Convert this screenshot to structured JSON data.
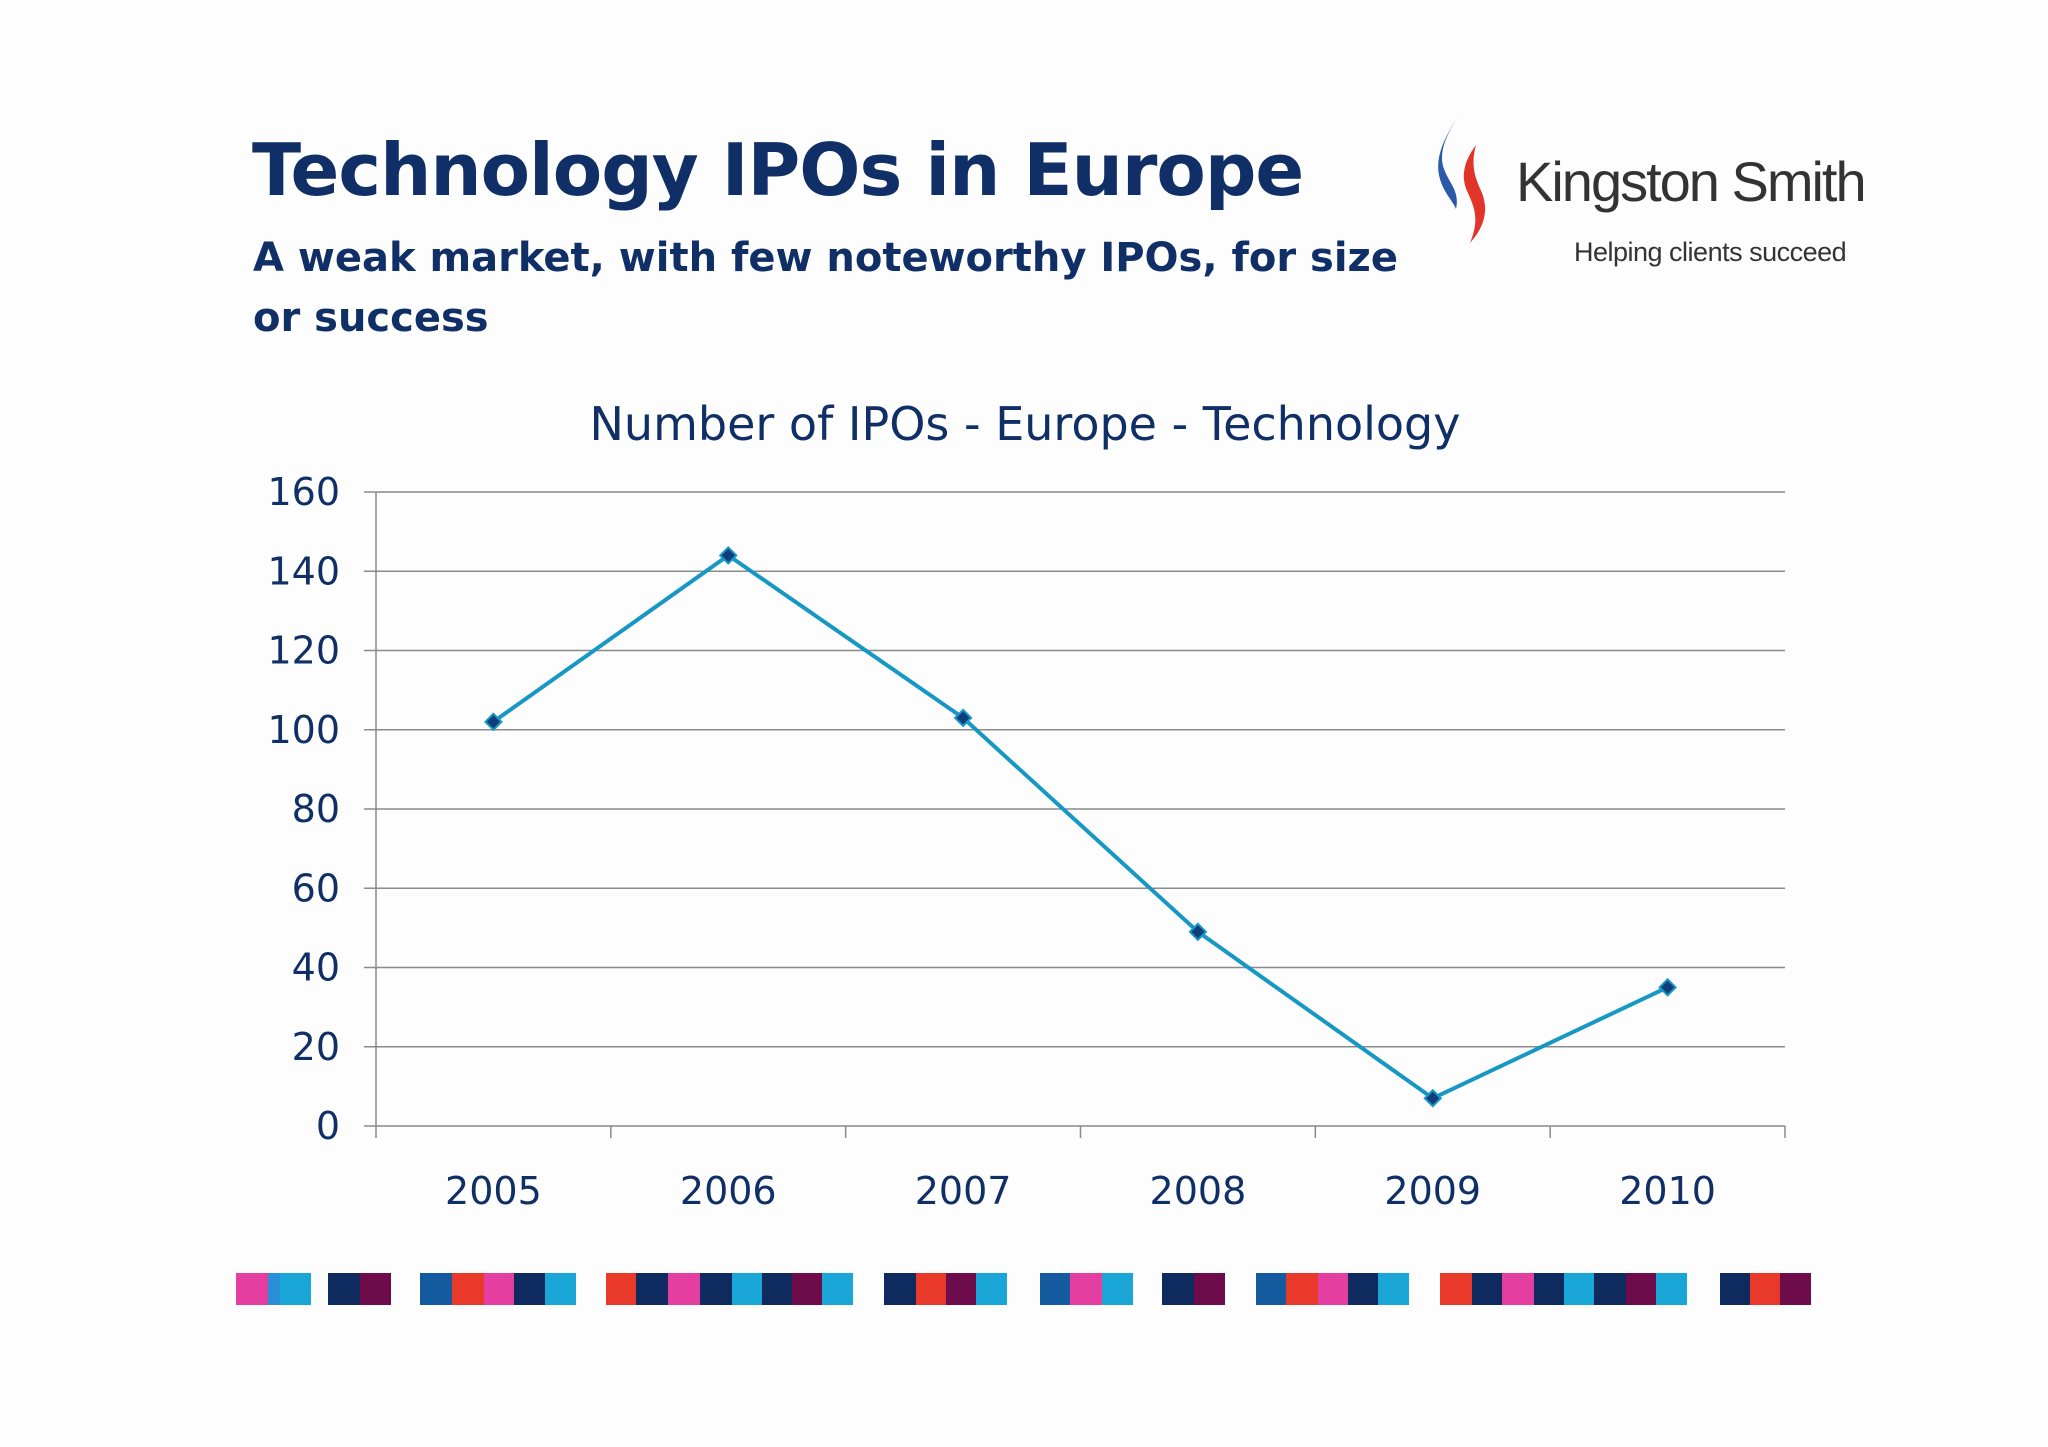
{
  "slide": {
    "title": "Technology IPOs in Europe",
    "subtitle": "A weak market, with few noteworthy IPOs, for size or success"
  },
  "logo": {
    "name": "Kingston Smith",
    "tagline": "Helping clients succeed",
    "mark_colors": [
      "#2b5aa8",
      "#e2352a"
    ]
  },
  "colors": {
    "text": "#0f2f66",
    "line": "#1797c4",
    "marker": "#0f3e7a",
    "grid": "#8a8a8a",
    "stripes": [
      "#e43fa0",
      "#2a8ed8",
      "#1aa6d6",
      "#0f2a5e",
      "#6e0b4a",
      "#145a9e",
      "#e8392a"
    ]
  },
  "chart_data": {
    "type": "line",
    "title": "Number of IPOs - Europe - Technology",
    "xlabel": "",
    "ylabel": "",
    "categories": [
      "2005",
      "2006",
      "2007",
      "2008",
      "2009",
      "2010"
    ],
    "series": [
      {
        "values": [
          102,
          144,
          103,
          49,
          7,
          35
        ]
      }
    ],
    "ylim": [
      0,
      160
    ],
    "yticks": [
      0,
      20,
      40,
      60,
      80,
      100,
      120,
      140,
      160
    ],
    "grid": true,
    "legend": "none",
    "marker": "diamond"
  }
}
